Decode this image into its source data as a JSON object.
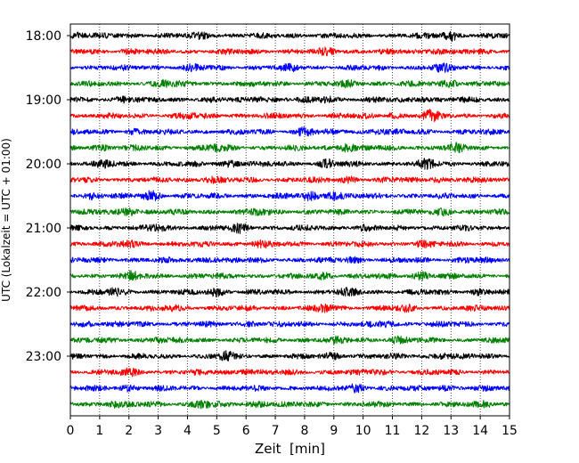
{
  "chart_data": {
    "type": "line",
    "title": "",
    "xlabel": "Zeit  [min]",
    "ylabel": "UTC (Lokalzeit = UTC + 01:00)",
    "xlim": [
      0,
      15
    ],
    "x_ticks": [
      0,
      1,
      2,
      3,
      4,
      5,
      6,
      7,
      8,
      9,
      10,
      11,
      12,
      13,
      14,
      15
    ],
    "grid": "vertical dotted lines at every minute",
    "legend": "none",
    "y_ticks": [
      "18:00",
      "19:00",
      "20:00",
      "21:00",
      "22:00",
      "23:00"
    ],
    "trace_interval_minutes": 15,
    "color_cycle": [
      "#000000",
      "#ff0000",
      "#0000ff",
      "#008000"
    ],
    "series": [
      {
        "start": "18:00",
        "color": "#000000",
        "events": [
          {
            "t": 0.2,
            "a": 0.5
          },
          {
            "t": 4.5,
            "a": 0.5
          },
          {
            "t": 13.0,
            "a": 1.0
          }
        ]
      },
      {
        "start": "18:15",
        "color": "#ff0000",
        "events": [
          {
            "t": 2.0,
            "a": 0.4
          },
          {
            "t": 8.8,
            "a": 0.5
          },
          {
            "t": 12.5,
            "a": 0.5
          }
        ]
      },
      {
        "start": "18:30",
        "color": "#0000ff",
        "events": [
          {
            "t": 4.2,
            "a": 0.4
          },
          {
            "t": 7.5,
            "a": 0.5
          },
          {
            "t": 12.7,
            "a": 0.6
          }
        ]
      },
      {
        "start": "18:45",
        "color": "#008000",
        "events": [
          {
            "t": 3.2,
            "a": 0.6
          },
          {
            "t": 9.5,
            "a": 0.5
          },
          {
            "t": 13.0,
            "a": 0.8
          }
        ]
      },
      {
        "start": "19:00",
        "color": "#000000",
        "events": [
          {
            "t": 1.8,
            "a": 0.5
          },
          {
            "t": 6.5,
            "a": 0.6
          },
          {
            "t": 8.8,
            "a": 0.6
          },
          {
            "t": 12.0,
            "a": 0.5
          }
        ]
      },
      {
        "start": "19:15",
        "color": "#ff0000",
        "events": [
          {
            "t": 4.0,
            "a": 0.4
          },
          {
            "t": 11.0,
            "a": 0.5
          },
          {
            "t": 12.3,
            "a": 1.0
          }
        ]
      },
      {
        "start": "19:30",
        "color": "#0000ff",
        "events": [
          {
            "t": 2.2,
            "a": 0.4
          },
          {
            "t": 8.0,
            "a": 0.8
          },
          {
            "t": 10.5,
            "a": 0.5
          }
        ]
      },
      {
        "start": "19:45",
        "color": "#008000",
        "events": [
          {
            "t": 1.0,
            "a": 0.5
          },
          {
            "t": 5.0,
            "a": 0.6
          },
          {
            "t": 9.4,
            "a": 0.9
          },
          {
            "t": 13.2,
            "a": 0.6
          }
        ]
      },
      {
        "start": "20:00",
        "color": "#000000",
        "events": [
          {
            "t": 1.2,
            "a": 0.6
          },
          {
            "t": 5.5,
            "a": 0.6
          },
          {
            "t": 8.8,
            "a": 0.8
          },
          {
            "t": 12.2,
            "a": 0.8
          }
        ]
      },
      {
        "start": "20:15",
        "color": "#ff0000",
        "events": [
          {
            "t": 4.8,
            "a": 0.5
          },
          {
            "t": 9.5,
            "a": 0.6
          },
          {
            "t": 12.5,
            "a": 0.5
          }
        ]
      },
      {
        "start": "20:30",
        "color": "#0000ff",
        "events": [
          {
            "t": 0.8,
            "a": 0.7
          },
          {
            "t": 2.8,
            "a": 1.0
          },
          {
            "t": 8.2,
            "a": 0.8
          },
          {
            "t": 9.0,
            "a": 1.0
          }
        ]
      },
      {
        "start": "20:45",
        "color": "#008000",
        "events": [
          {
            "t": 2.0,
            "a": 0.9
          },
          {
            "t": 6.5,
            "a": 0.6
          },
          {
            "t": 12.8,
            "a": 0.7
          }
        ]
      },
      {
        "start": "21:00",
        "color": "#000000",
        "events": [
          {
            "t": 3.0,
            "a": 0.5
          },
          {
            "t": 5.8,
            "a": 0.8
          },
          {
            "t": 10.0,
            "a": 0.4
          }
        ]
      },
      {
        "start": "21:15",
        "color": "#ff0000",
        "events": [
          {
            "t": 2.0,
            "a": 0.5
          },
          {
            "t": 6.5,
            "a": 0.5
          },
          {
            "t": 12.0,
            "a": 0.4
          }
        ]
      },
      {
        "start": "21:30",
        "color": "#0000ff",
        "events": [
          {
            "t": 4.8,
            "a": 0.4
          },
          {
            "t": 9.7,
            "a": 0.5
          },
          {
            "t": 13.5,
            "a": 0.4
          }
        ]
      },
      {
        "start": "21:45",
        "color": "#008000",
        "events": [
          {
            "t": 2.1,
            "a": 0.7
          },
          {
            "t": 8.7,
            "a": 0.5
          },
          {
            "t": 12.0,
            "a": 0.8
          }
        ]
      },
      {
        "start": "22:00",
        "color": "#000000",
        "events": [
          {
            "t": 1.5,
            "a": 0.6
          },
          {
            "t": 5.0,
            "a": 0.8
          },
          {
            "t": 9.5,
            "a": 0.6
          },
          {
            "t": 14.0,
            "a": 0.5
          }
        ]
      },
      {
        "start": "22:15",
        "color": "#ff0000",
        "events": [
          {
            "t": 3.5,
            "a": 0.4
          },
          {
            "t": 8.7,
            "a": 0.6
          },
          {
            "t": 11.5,
            "a": 0.4
          }
        ]
      },
      {
        "start": "22:30",
        "color": "#0000ff",
        "events": [
          {
            "t": 0.6,
            "a": 0.4
          },
          {
            "t": 6.2,
            "a": 0.4
          },
          {
            "t": 10.8,
            "a": 0.5
          }
        ]
      },
      {
        "start": "22:45",
        "color": "#008000",
        "events": [
          {
            "t": 3.0,
            "a": 0.4
          },
          {
            "t": 9.0,
            "a": 0.5
          },
          {
            "t": 11.2,
            "a": 0.6
          }
        ]
      },
      {
        "start": "23:00",
        "color": "#000000",
        "events": [
          {
            "t": 5.3,
            "a": 0.8
          },
          {
            "t": 9.0,
            "a": 0.5
          },
          {
            "t": 12.7,
            "a": 0.5
          }
        ]
      },
      {
        "start": "23:15",
        "color": "#ff0000",
        "events": [
          {
            "t": 2.0,
            "a": 0.5
          },
          {
            "t": 6.0,
            "a": 0.5
          },
          {
            "t": 10.5,
            "a": 0.4
          }
        ]
      },
      {
        "start": "23:30",
        "color": "#0000ff",
        "events": [
          {
            "t": 2.0,
            "a": 0.5
          },
          {
            "t": 9.8,
            "a": 0.8
          },
          {
            "t": 12.8,
            "a": 0.5
          }
        ]
      },
      {
        "start": "23:45",
        "color": "#008000",
        "events": [
          {
            "t": 1.5,
            "a": 0.6
          },
          {
            "t": 4.5,
            "a": 0.8
          },
          {
            "t": 6.5,
            "a": 0.6
          },
          {
            "t": 14.2,
            "a": 0.6
          }
        ]
      }
    ]
  }
}
